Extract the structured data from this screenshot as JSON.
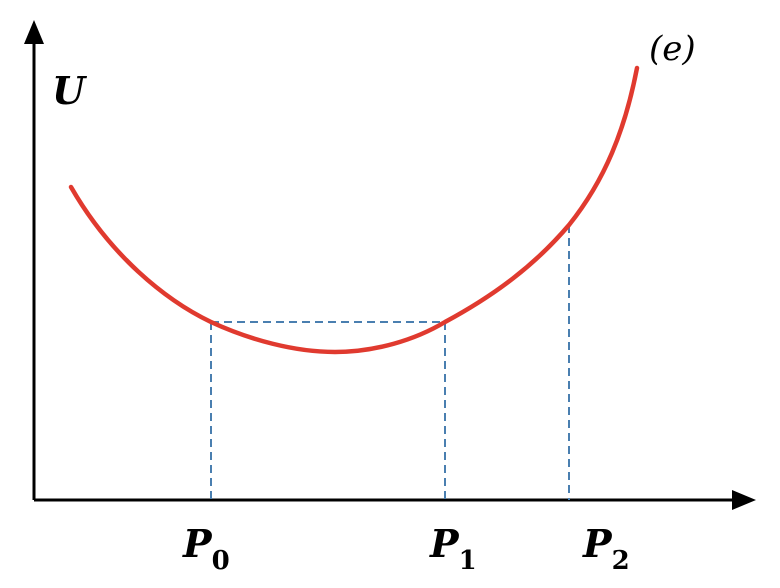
{
  "diagram": {
    "panel_tag": "(e)",
    "y_axis_label": "U",
    "ticks": [
      {
        "main": "P",
        "sub": "0"
      },
      {
        "main": "P",
        "sub": "1"
      },
      {
        "main": "P",
        "sub": "2"
      }
    ],
    "colors": {
      "curve": "#e03a2f",
      "guides": "#4a7fb0",
      "axes": "#000000"
    }
  }
}
